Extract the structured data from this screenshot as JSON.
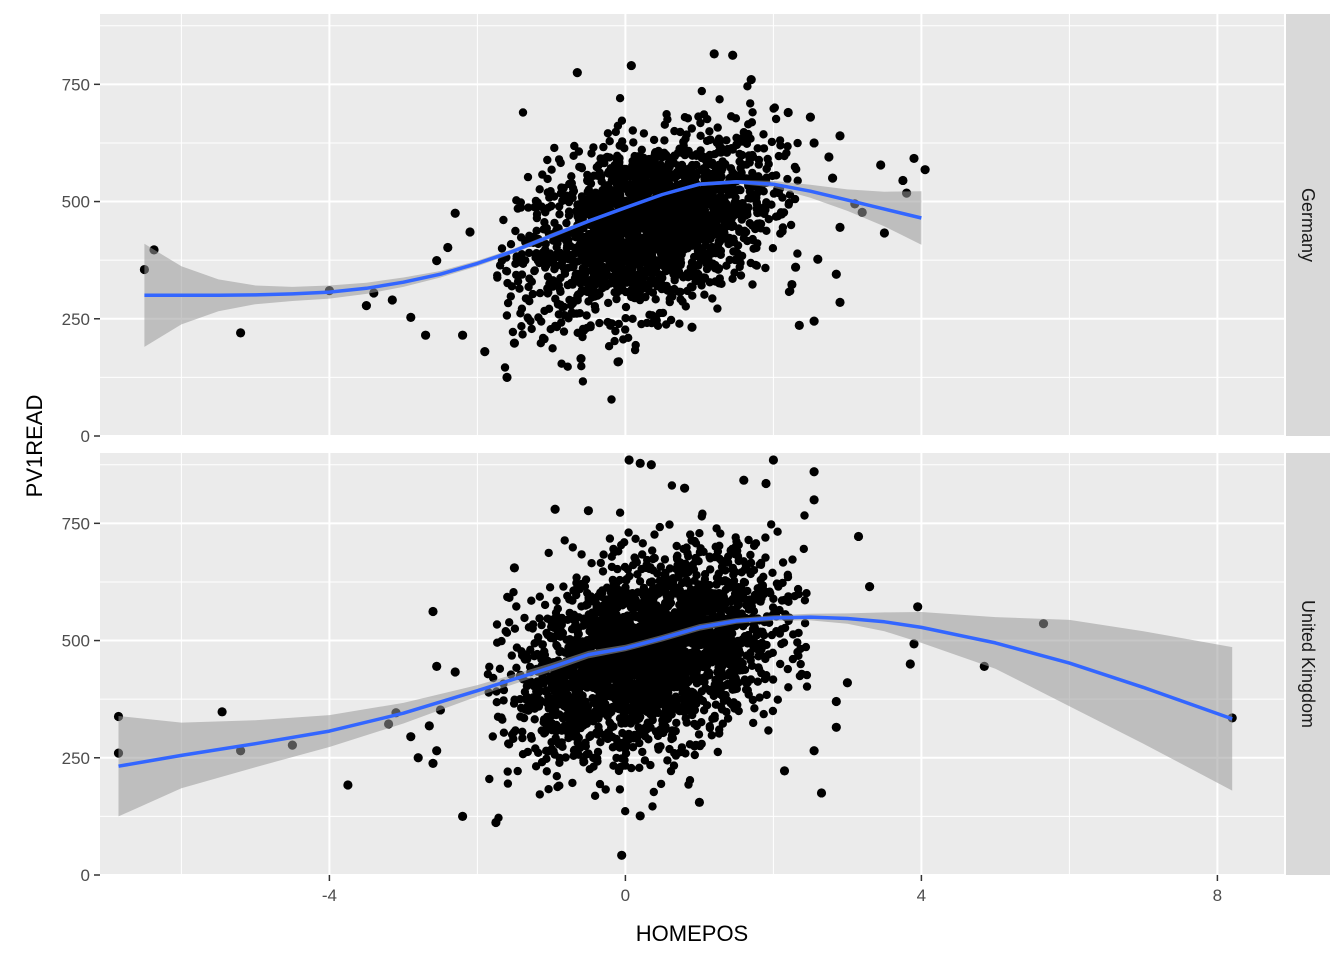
{
  "chart_data": {
    "type": "scatter",
    "xlabel": "HOMEPOS",
    "ylabel": "PV1READ",
    "x_ticks": [
      -4,
      0,
      4,
      8
    ],
    "y_ticks": [
      0,
      250,
      500,
      750
    ],
    "xlim": [
      -7.1,
      8.9
    ],
    "ylim": [
      0,
      900
    ],
    "grid": true,
    "facets": [
      {
        "strip": "Germany",
        "cloud": {
          "x_center": 0.3,
          "y_center": 450,
          "x_spread": 0.85,
          "y_spread": 95,
          "n": 2200
        },
        "points": [
          {
            "x": -6.5,
            "y": 355
          },
          {
            "x": -6.37,
            "y": 397
          },
          {
            "x": -5.2,
            "y": 220
          },
          {
            "x": -4.0,
            "y": 310
          },
          {
            "x": -3.5,
            "y": 278
          },
          {
            "x": -3.4,
            "y": 305
          },
          {
            "x": -3.15,
            "y": 290
          },
          {
            "x": -2.9,
            "y": 253
          },
          {
            "x": -2.7,
            "y": 215
          },
          {
            "x": -2.3,
            "y": 475
          },
          {
            "x": -2.1,
            "y": 435
          },
          {
            "x": -2.2,
            "y": 215
          },
          {
            "x": -1.9,
            "y": 180
          },
          {
            "x": -1.6,
            "y": 125
          },
          {
            "x": -1.5,
            "y": 198
          },
          {
            "x": -0.6,
            "y": 165
          },
          {
            "x": -0.1,
            "y": 158
          },
          {
            "x": 0.9,
            "y": 232
          },
          {
            "x": 0.08,
            "y": 790
          },
          {
            "x": 1.2,
            "y": 815
          },
          {
            "x": 1.45,
            "y": 812
          },
          {
            "x": -0.65,
            "y": 775
          },
          {
            "x": 1.7,
            "y": 760
          },
          {
            "x": 2.2,
            "y": 690
          },
          {
            "x": 2.5,
            "y": 680
          },
          {
            "x": 2.9,
            "y": 640
          },
          {
            "x": 2.55,
            "y": 625
          },
          {
            "x": 2.75,
            "y": 595
          },
          {
            "x": 2.8,
            "y": 550
          },
          {
            "x": 3.1,
            "y": 495
          },
          {
            "x": 3.2,
            "y": 477
          },
          {
            "x": 2.9,
            "y": 445
          },
          {
            "x": 3.45,
            "y": 578
          },
          {
            "x": 3.75,
            "y": 545
          },
          {
            "x": 3.9,
            "y": 592
          },
          {
            "x": 4.05,
            "y": 568
          },
          {
            "x": 3.5,
            "y": 433
          },
          {
            "x": 3.8,
            "y": 518
          },
          {
            "x": 2.6,
            "y": 377
          },
          {
            "x": 2.85,
            "y": 345
          },
          {
            "x": 2.9,
            "y": 285
          },
          {
            "x": 2.25,
            "y": 323
          },
          {
            "x": 2.35,
            "y": 236
          },
          {
            "x": 2.55,
            "y": 245
          },
          {
            "x": 2.3,
            "y": 360
          },
          {
            "x": -2.55,
            "y": 374
          },
          {
            "x": -2.4,
            "y": 402
          }
        ],
        "smooth": {
          "x": [
            -6.5,
            -6.0,
            -5.5,
            -5.0,
            -4.5,
            -4.0,
            -3.5,
            -3.0,
            -2.5,
            -2.0,
            -1.5,
            -1.0,
            -0.5,
            0.0,
            0.5,
            1.0,
            1.5,
            2.0,
            2.5,
            3.0,
            3.5,
            4.0
          ],
          "y": [
            300,
            300,
            300,
            301,
            303,
            307,
            315,
            328,
            345,
            368,
            395,
            427,
            458,
            487,
            515,
            537,
            542,
            537,
            522,
            503,
            484,
            465
          ],
          "lower": [
            190,
            238,
            266,
            281,
            288,
            293,
            303,
            318,
            338,
            362,
            390,
            422,
            454,
            484,
            512,
            533,
            538,
            530,
            508,
            480,
            447,
            408
          ],
          "upper": [
            410,
            362,
            334,
            321,
            318,
            321,
            327,
            338,
            352,
            374,
            400,
            432,
            462,
            490,
            518,
            541,
            546,
            544,
            536,
            526,
            521,
            522
          ]
        }
      },
      {
        "strip": "United Kingdom",
        "cloud": {
          "x_center": 0.3,
          "y_center": 470,
          "x_spread": 0.9,
          "y_spread": 105,
          "n": 2600
        },
        "points": [
          {
            "x": -6.85,
            "y": 338
          },
          {
            "x": -6.85,
            "y": 260
          },
          {
            "x": -5.45,
            "y": 348
          },
          {
            "x": -5.2,
            "y": 265
          },
          {
            "x": -4.5,
            "y": 277
          },
          {
            "x": -3.75,
            "y": 192
          },
          {
            "x": -3.2,
            "y": 322
          },
          {
            "x": -3.1,
            "y": 346
          },
          {
            "x": -2.9,
            "y": 295
          },
          {
            "x": -2.8,
            "y": 250
          },
          {
            "x": -2.55,
            "y": 265
          },
          {
            "x": -2.5,
            "y": 352
          },
          {
            "x": -2.55,
            "y": 445
          },
          {
            "x": -2.65,
            "y": 318
          },
          {
            "x": -2.6,
            "y": 238
          },
          {
            "x": -2.6,
            "y": 562
          },
          {
            "x": -2.3,
            "y": 433
          },
          {
            "x": -2.2,
            "y": 125
          },
          {
            "x": -1.75,
            "y": 112
          },
          {
            "x": -1.5,
            "y": 655
          },
          {
            "x": -0.95,
            "y": 780
          },
          {
            "x": -0.5,
            "y": 777
          },
          {
            "x": 0.05,
            "y": 885
          },
          {
            "x": 0.2,
            "y": 878
          },
          {
            "x": 0.35,
            "y": 875
          },
          {
            "x": 0.8,
            "y": 825
          },
          {
            "x": 1.6,
            "y": 842
          },
          {
            "x": 2.0,
            "y": 885
          },
          {
            "x": 2.55,
            "y": 860
          },
          {
            "x": 1.9,
            "y": 835
          },
          {
            "x": 2.55,
            "y": 800
          },
          {
            "x": 3.15,
            "y": 722
          },
          {
            "x": 3.3,
            "y": 615
          },
          {
            "x": 3.95,
            "y": 572
          },
          {
            "x": 3.9,
            "y": 493
          },
          {
            "x": 3.85,
            "y": 450
          },
          {
            "x": 3.0,
            "y": 410
          },
          {
            "x": 2.85,
            "y": 370
          },
          {
            "x": 2.85,
            "y": 315
          },
          {
            "x": 2.55,
            "y": 265
          },
          {
            "x": 2.65,
            "y": 175
          },
          {
            "x": 2.15,
            "y": 222
          },
          {
            "x": 1.0,
            "y": 155
          },
          {
            "x": -0.05,
            "y": 42
          },
          {
            "x": 0.2,
            "y": 126
          },
          {
            "x": 4.85,
            "y": 445
          },
          {
            "x": 5.65,
            "y": 536
          },
          {
            "x": 8.2,
            "y": 335
          }
        ],
        "smooth": {
          "x": [
            -6.85,
            -6.0,
            -5.0,
            -4.0,
            -3.0,
            -2.0,
            -1.0,
            -0.5,
            0.0,
            0.5,
            1.0,
            1.5,
            2.0,
            2.5,
            3.0,
            3.5,
            4.0,
            5.0,
            6.0,
            7.0,
            8.2
          ],
          "y": [
            232,
            255,
            280,
            307,
            345,
            393,
            443,
            470,
            484,
            505,
            528,
            542,
            548,
            550,
            547,
            540,
            528,
            495,
            452,
            400,
            333
          ],
          "lower": [
            125,
            185,
            230,
            273,
            323,
            381,
            434,
            462,
            477,
            498,
            521,
            536,
            542,
            543,
            536,
            520,
            495,
            440,
            360,
            280,
            180
          ],
          "upper": [
            339,
            325,
            330,
            341,
            367,
            405,
            452,
            478,
            491,
            512,
            535,
            548,
            554,
            557,
            558,
            560,
            561,
            550,
            544,
            520,
            486
          ]
        }
      }
    ]
  },
  "style": {
    "panel_bg": "#ebebeb",
    "grid_color": "#ffffff",
    "strip_bg": "#d9d9d9",
    "point_color": "#000000",
    "smooth_color": "#3366ff",
    "ribbon_color": "#999999"
  }
}
